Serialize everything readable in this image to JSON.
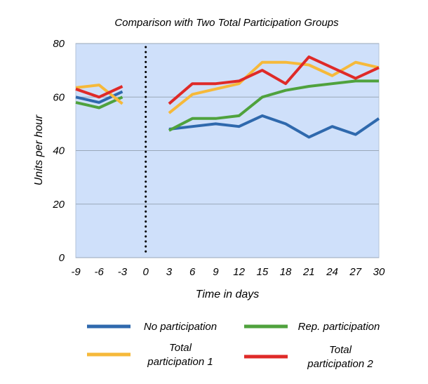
{
  "chart_data": {
    "type": "line",
    "title": "Comparison with Two Total Participation Groups",
    "xlabel": "Time in days",
    "ylabel": "Units per hour",
    "xlim": [
      -9,
      30
    ],
    "ylim": [
      0,
      80
    ],
    "x_ticks": [
      "-9",
      "-6",
      "-3",
      "0",
      "3",
      "6",
      "9",
      "12",
      "15",
      "18",
      "21",
      "24",
      "27",
      "30"
    ],
    "y_ticks": [
      "0",
      "20",
      "40",
      "60",
      "80"
    ],
    "grid": true,
    "reference_line_x": 0,
    "legend_position": "bottom",
    "series": [
      {
        "name": "No participation",
        "color": "#2f69ad",
        "segments": [
          {
            "x": [
              -9,
              -6,
              -3
            ],
            "y": [
              60,
              58,
              62
            ]
          },
          {
            "x": [
              3,
              6,
              9,
              12,
              15,
              18,
              21,
              24,
              27,
              30
            ],
            "y": [
              48,
              49,
              50,
              49,
              53,
              50,
              45,
              49,
              46,
              52
            ]
          }
        ]
      },
      {
        "name": "Rep. participation",
        "color": "#4fa23d",
        "segments": [
          {
            "x": [
              -9,
              -6,
              -3
            ],
            "y": [
              58,
              56,
              60
            ]
          },
          {
            "x": [
              3,
              6,
              9,
              12,
              15,
              18,
              21,
              24,
              27,
              30
            ],
            "y": [
              47.5,
              52,
              52,
              53,
              60,
              62.5,
              64,
              65,
              66,
              66
            ]
          }
        ]
      },
      {
        "name": "Total participation 1",
        "color": "#f6b93a",
        "segments": [
          {
            "x": [
              -9,
              -6,
              -3
            ],
            "y": [
              63.5,
              64.5,
              57.5
            ]
          },
          {
            "x": [
              3,
              6,
              9,
              12,
              15,
              18,
              21,
              24,
              27,
              30
            ],
            "y": [
              54,
              61,
              63,
              65,
              73,
              73,
              72,
              68,
              73,
              71
            ]
          }
        ]
      },
      {
        "name": "Total participation 2",
        "color": "#df2a28",
        "segments": [
          {
            "x": [
              -9,
              -6,
              -3
            ],
            "y": [
              63,
              60,
              64
            ]
          },
          {
            "x": [
              3,
              6,
              9,
              12,
              15,
              18,
              21,
              24,
              27,
              30
            ],
            "y": [
              57.5,
              65,
              65,
              66,
              70,
              65,
              75,
              71,
              67,
              71
            ]
          }
        ]
      }
    ],
    "legend": [
      {
        "label": "No participation",
        "lines": [
          "No participation"
        ],
        "color": "#2f69ad"
      },
      {
        "label": "Rep. participation",
        "lines": [
          "Rep. participation"
        ],
        "color": "#4fa23d"
      },
      {
        "label": "Total participation 1",
        "lines": [
          "Total",
          "participation 1"
        ],
        "color": "#f6b93a"
      },
      {
        "label": "Total participation 2",
        "lines": [
          "Total",
          "participation 2"
        ],
        "color": "#df2a28"
      }
    ]
  }
}
